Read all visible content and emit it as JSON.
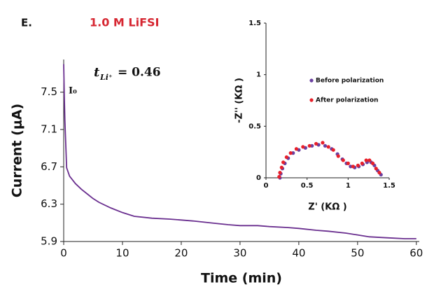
{
  "chart_data": [
    {
      "type": "line",
      "panel_label": "E.",
      "title": "1.0 M LiFSI",
      "x_label": "Time (min)",
      "y_label": "Current (μA)",
      "annotations": {
        "peak": "I₀",
        "t": "t",
        "t_sub": "Li⁺",
        "t_value": "= 0.46"
      },
      "color": "#6a2f8f",
      "x": [
        0,
        0.1,
        0.2,
        0.5,
        1,
        2,
        3,
        4,
        5,
        6,
        8,
        10,
        12,
        15,
        18,
        20,
        22,
        25,
        28,
        30,
        33,
        35,
        38,
        40,
        43,
        45,
        48,
        50,
        52,
        55,
        58,
        60
      ],
      "values": [
        7.8,
        7.47,
        7.2,
        6.69,
        6.6,
        6.52,
        6.46,
        6.41,
        6.36,
        6.32,
        6.26,
        6.21,
        6.17,
        6.15,
        6.14,
        6.13,
        6.12,
        6.1,
        6.08,
        6.07,
        6.07,
        6.06,
        6.05,
        6.04,
        6.02,
        6.01,
        5.99,
        5.97,
        5.95,
        5.94,
        5.93,
        5.93
      ],
      "xlim": [
        0,
        60.5
      ],
      "ylim": [
        5.9,
        7.85
      ],
      "xticks": [
        0,
        10,
        20,
        30,
        40,
        50,
        60
      ],
      "yticks": [
        5.9,
        6.3,
        6.7,
        7.1,
        7.5
      ]
    },
    {
      "type": "scatter",
      "x_label": "Z' (KΩ )",
      "y_label": "-Z'' (KΩ )",
      "legend": "right",
      "xlim": [
        0,
        1.5
      ],
      "ylim": [
        0,
        1.5
      ],
      "xticks": [
        0,
        0.5,
        1,
        1.5
      ],
      "yticks": [
        0,
        0.5,
        1,
        1.5
      ],
      "series": [
        {
          "name": "Before polarization",
          "color": "#6a3fa0",
          "x": [
            0.17,
            0.18,
            0.2,
            0.23,
            0.27,
            0.33,
            0.4,
            0.48,
            0.56,
            0.64,
            0.72,
            0.8,
            0.87,
            0.93,
            0.98,
            1.03,
            1.08,
            1.13,
            1.18,
            1.23,
            1.28,
            1.32,
            1.36,
            1.4
          ],
          "values": [
            0.0,
            0.04,
            0.09,
            0.14,
            0.19,
            0.24,
            0.27,
            0.29,
            0.31,
            0.32,
            0.31,
            0.28,
            0.23,
            0.18,
            0.14,
            0.11,
            0.1,
            0.11,
            0.13,
            0.15,
            0.15,
            0.12,
            0.07,
            0.03
          ]
        },
        {
          "name": "After polarization",
          "color": "#e8202a",
          "x": [
            0.16,
            0.17,
            0.19,
            0.21,
            0.25,
            0.3,
            0.37,
            0.45,
            0.53,
            0.61,
            0.69,
            0.76,
            0.82,
            0.88,
            0.94,
            1.0,
            1.06,
            1.12,
            1.17,
            1.22,
            1.26,
            1.3,
            1.34,
            1.38
          ],
          "values": [
            0.01,
            0.05,
            0.1,
            0.15,
            0.2,
            0.24,
            0.28,
            0.3,
            0.31,
            0.33,
            0.34,
            0.3,
            0.27,
            0.21,
            0.17,
            0.14,
            0.11,
            0.12,
            0.14,
            0.17,
            0.17,
            0.14,
            0.09,
            0.05
          ]
        }
      ]
    }
  ]
}
